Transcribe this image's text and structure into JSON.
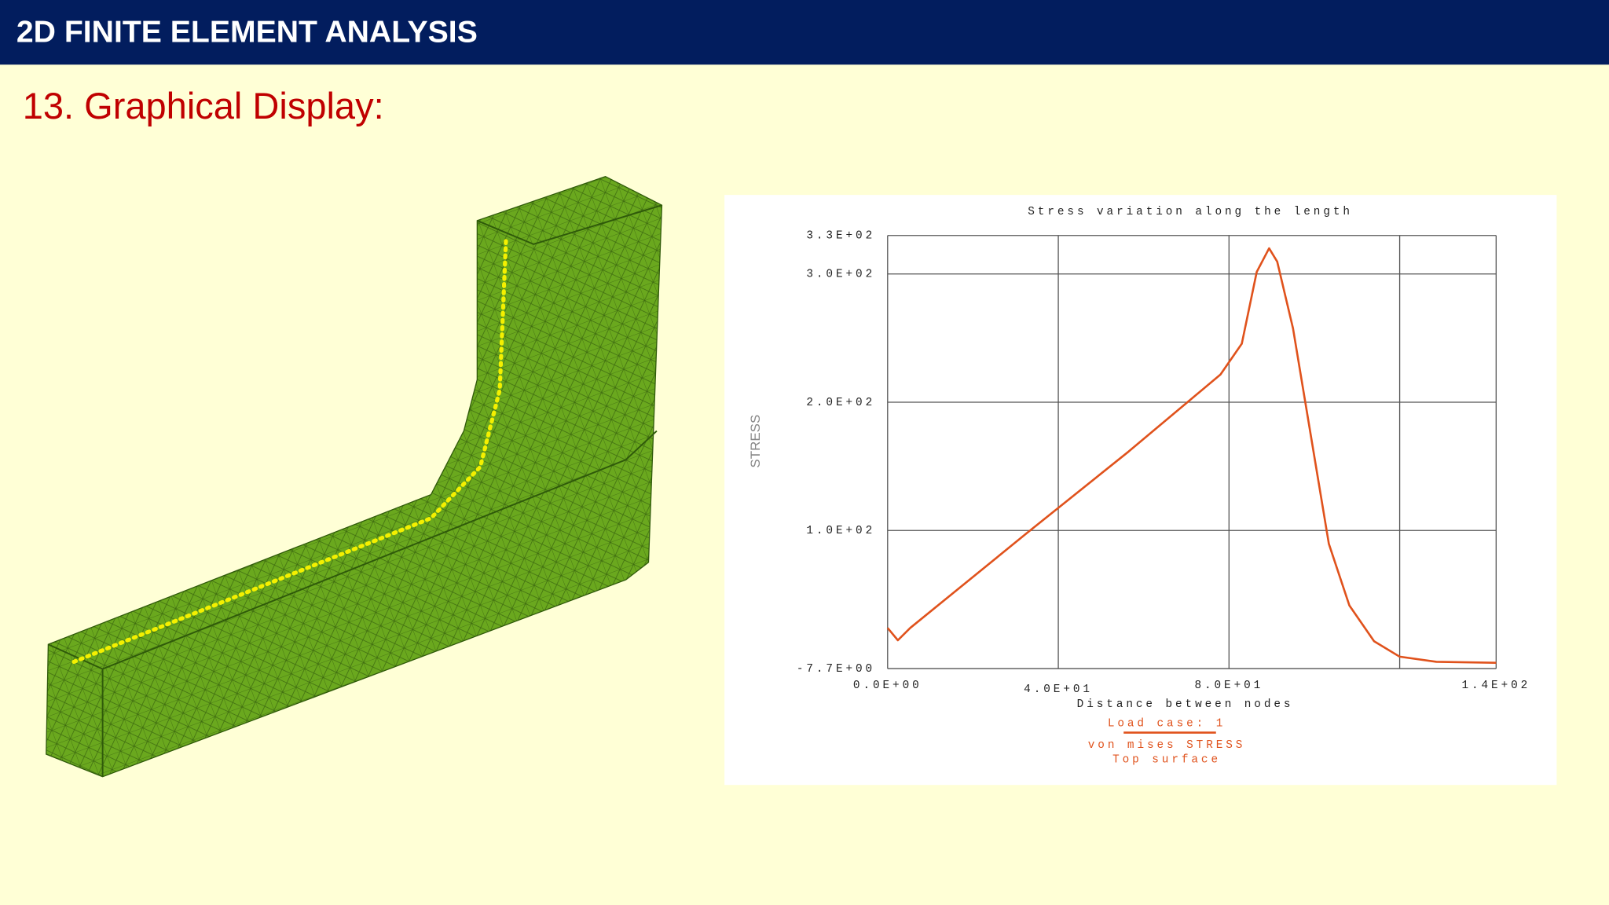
{
  "header": {
    "title": "2D FINITE ELEMENT ANALYSIS"
  },
  "heading": "13. Graphical Display:",
  "chart_data": {
    "type": "line",
    "title": "Stress variation along the length",
    "x_label": "Distance between nodes",
    "y_label": "STRESS",
    "annotations": [
      "Load case: 1",
      "Top surface"
    ],
    "x": [
      0,
      2.4,
      5.3,
      32.5,
      56.5,
      78,
      83,
      86.5,
      89.4,
      91.3,
      95,
      98.6,
      103.4,
      108.2,
      114,
      120,
      128.6,
      142.6
    ],
    "series": [
      {
        "name": "von mises STRESS",
        "color": "#e0521c",
        "values": [
          24,
          14.4,
          24,
          97.6,
          161.6,
          221.6,
          245.6,
          301.6,
          320,
          309.6,
          257.6,
          185.6,
          89.6,
          41.6,
          13.6,
          1.6,
          -2.4,
          -3.2
        ]
      }
    ],
    "xlim": [
      0,
      142.6
    ],
    "xticks": [
      {
        "value": 0,
        "label": "0.0E+00"
      },
      {
        "value": 40,
        "label": "4.0E+01"
      },
      {
        "value": 80,
        "label": "8.0E+01"
      },
      {
        "value": 120,
        "label": null
      },
      {
        "value": 142.6,
        "label": "1.4E+02"
      }
    ],
    "ylim": [
      -7.7,
      330
    ],
    "yticks": [
      {
        "value": -7.7,
        "label": "-7.7E+00"
      },
      {
        "value": 100,
        "label": "1.0E+02"
      },
      {
        "value": 200,
        "label": "2.0E+02"
      },
      {
        "value": 300,
        "label": "3.0E+02"
      },
      {
        "value": 330,
        "label": "3.3E+02"
      }
    ],
    "grid": true
  }
}
